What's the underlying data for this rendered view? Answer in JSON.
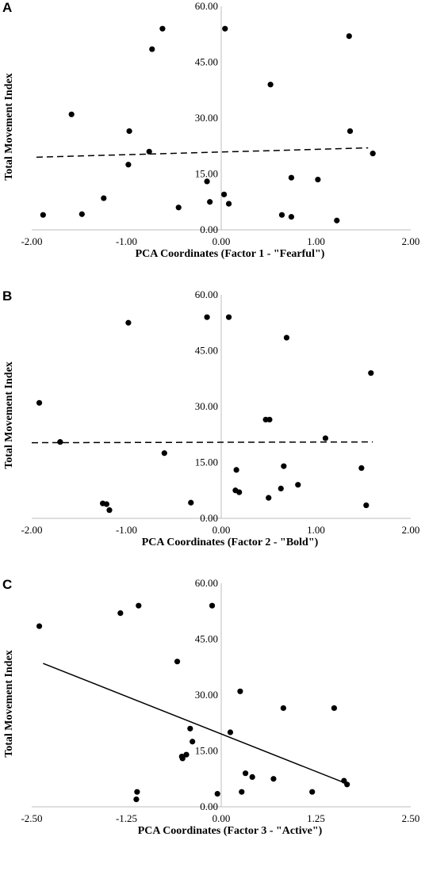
{
  "chart_data": [
    {
      "panel": "A",
      "type": "scatter",
      "xlabel": "PCA Coordinates (Factor 1 - \"Fearful\")",
      "ylabel": "Total Movement Index",
      "xlim": [
        -2,
        2
      ],
      "ylim": [
        0,
        60
      ],
      "xticks": [
        "-2.00",
        "-1.00",
        "0.00",
        "1.00",
        "2.00"
      ],
      "xtick_values": [
        -2,
        -1,
        0,
        1,
        2
      ],
      "yticks": [
        "0.00",
        "15.00",
        "30.00",
        "45.00",
        "60.00"
      ],
      "ytick_values": [
        0,
        15,
        30,
        45,
        60
      ],
      "points": [
        [
          -1.88,
          4.0
        ],
        [
          -1.58,
          31.0
        ],
        [
          -1.47,
          4.2
        ],
        [
          -1.24,
          8.5
        ],
        [
          -0.97,
          26.5
        ],
        [
          -0.98,
          17.5
        ],
        [
          -0.76,
          21.0
        ],
        [
          -0.73,
          48.5
        ],
        [
          -0.62,
          54.0
        ],
        [
          -0.45,
          6.0
        ],
        [
          -0.15,
          13.0
        ],
        [
          -0.12,
          7.5
        ],
        [
          0.03,
          9.5
        ],
        [
          0.04,
          54.0
        ],
        [
          0.08,
          7.0
        ],
        [
          0.52,
          39.0
        ],
        [
          0.64,
          4.0
        ],
        [
          0.74,
          14.0
        ],
        [
          0.74,
          3.5
        ],
        [
          1.02,
          13.5
        ],
        [
          1.22,
          2.5
        ],
        [
          1.35,
          52.0
        ],
        [
          1.36,
          26.5
        ],
        [
          1.6,
          20.5
        ]
      ],
      "trendline": {
        "style": "dashed",
        "x": [
          -1.95,
          1.55
        ],
        "y": [
          19.5,
          22.0
        ]
      },
      "color": "#000000"
    },
    {
      "panel": "B",
      "type": "scatter",
      "xlabel": "PCA Coordinates (Factor 2 - \"Bold\")",
      "ylabel": "Total Movement Index",
      "xlim": [
        -2,
        2
      ],
      "ylim": [
        0,
        60
      ],
      "xticks": [
        "-2.00",
        "-1.00",
        "0.00",
        "1.00",
        "2.00"
      ],
      "xtick_values": [
        -2,
        -1,
        0,
        1,
        2
      ],
      "yticks": [
        "0.00",
        "15.00",
        "30.00",
        "45.00",
        "60.00"
      ],
      "ytick_values": [
        0,
        15,
        30,
        45,
        60
      ],
      "points": [
        [
          -1.92,
          31.0
        ],
        [
          -1.7,
          20.5
        ],
        [
          -1.25,
          4.0
        ],
        [
          -1.21,
          3.8
        ],
        [
          -1.18,
          2.2
        ],
        [
          -0.98,
          52.5
        ],
        [
          -0.6,
          17.5
        ],
        [
          -0.32,
          4.2
        ],
        [
          -0.15,
          54.0
        ],
        [
          0.08,
          54.0
        ],
        [
          0.15,
          7.5
        ],
        [
          0.16,
          13.0
        ],
        [
          0.19,
          7.0
        ],
        [
          0.47,
          26.5
        ],
        [
          0.51,
          26.5
        ],
        [
          0.5,
          5.5
        ],
        [
          0.63,
          8.0
        ],
        [
          0.66,
          14.0
        ],
        [
          0.69,
          48.5
        ],
        [
          0.81,
          9.0
        ],
        [
          1.1,
          21.5
        ],
        [
          1.48,
          13.5
        ],
        [
          1.53,
          3.5
        ],
        [
          1.58,
          39.0
        ]
      ],
      "trendline": {
        "style": "dashed",
        "x": [
          -2.0,
          1.6
        ],
        "y": [
          20.3,
          20.5
        ]
      },
      "color": "#000000"
    },
    {
      "panel": "C",
      "type": "scatter",
      "xlabel": "PCA Coordinates (Factor 3 - \"Active\")",
      "ylabel": "Total Movement Index",
      "xlim": [
        -2.5,
        2.5
      ],
      "ylim": [
        0,
        60
      ],
      "xticks": [
        "-2.50",
        "-1.25",
        "0.00",
        "1.25",
        "2.50"
      ],
      "xtick_values": [
        -2.5,
        -1.25,
        0,
        1.25,
        2.5
      ],
      "yticks": [
        "0.00",
        "15.00",
        "30.00",
        "45.00",
        "60.00"
      ],
      "ytick_values": [
        0,
        15,
        30,
        45,
        60
      ],
      "points": [
        [
          -2.4,
          48.5
        ],
        [
          -1.33,
          52.0
        ],
        [
          -1.11,
          4.0
        ],
        [
          -1.12,
          2.0
        ],
        [
          -1.09,
          54.0
        ],
        [
          -0.58,
          39.0
        ],
        [
          -0.52,
          13.5
        ],
        [
          -0.51,
          13.0
        ],
        [
          -0.46,
          14.0
        ],
        [
          -0.41,
          21.0
        ],
        [
          -0.38,
          17.5
        ],
        [
          -0.12,
          54.0
        ],
        [
          -0.05,
          3.5
        ],
        [
          0.12,
          20.0
        ],
        [
          0.25,
          31.0
        ],
        [
          0.27,
          4.0
        ],
        [
          0.32,
          9.0
        ],
        [
          0.41,
          8.0
        ],
        [
          0.69,
          7.5
        ],
        [
          0.82,
          26.5
        ],
        [
          1.2,
          4.0
        ],
        [
          1.49,
          26.5
        ],
        [
          1.62,
          7.0
        ],
        [
          1.66,
          6.0
        ]
      ],
      "trendline": {
        "style": "solid",
        "x": [
          -2.35,
          1.62
        ],
        "y": [
          38.5,
          6.5
        ]
      },
      "color": "#000000"
    }
  ]
}
